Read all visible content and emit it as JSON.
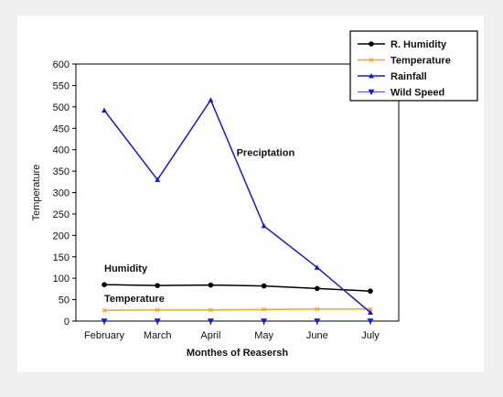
{
  "chart_data": {
    "type": "line",
    "categories": [
      "February",
      "March",
      "April",
      "May",
      "June",
      "July"
    ],
    "xlabel": "Monthes of Reasersh",
    "ylabel": "Temperature",
    "ylim": [
      0,
      600
    ],
    "yticks": [
      0,
      50,
      100,
      150,
      200,
      250,
      300,
      350,
      400,
      450,
      500,
      550,
      600
    ],
    "grid": false,
    "legend": "top-right",
    "series": [
      {
        "name": "R. Humidity",
        "color": "#000000",
        "marker": "circle",
        "values": [
          85,
          83,
          84,
          82,
          76,
          70
        ]
      },
      {
        "name": "Temperature",
        "color": "#f5a623",
        "marker": "x",
        "values": [
          25,
          26,
          26,
          27,
          28,
          28
        ]
      },
      {
        "name": "Rainfall",
        "color": "#1a1acc",
        "marker": "triangle-up",
        "values": [
          492,
          330,
          516,
          222,
          125,
          20
        ]
      },
      {
        "name": "Wild Speed",
        "color": "#1a1acc",
        "marker": "triangle-down",
        "values": [
          0,
          0,
          0,
          0,
          0,
          0
        ]
      }
    ],
    "annotations": [
      {
        "text": "Preciptation",
        "x": "May",
        "y": 385
      },
      {
        "text": "Humidity",
        "x": "February",
        "y": 115
      },
      {
        "text": "Temperature",
        "x": "February",
        "y": 45
      }
    ]
  }
}
